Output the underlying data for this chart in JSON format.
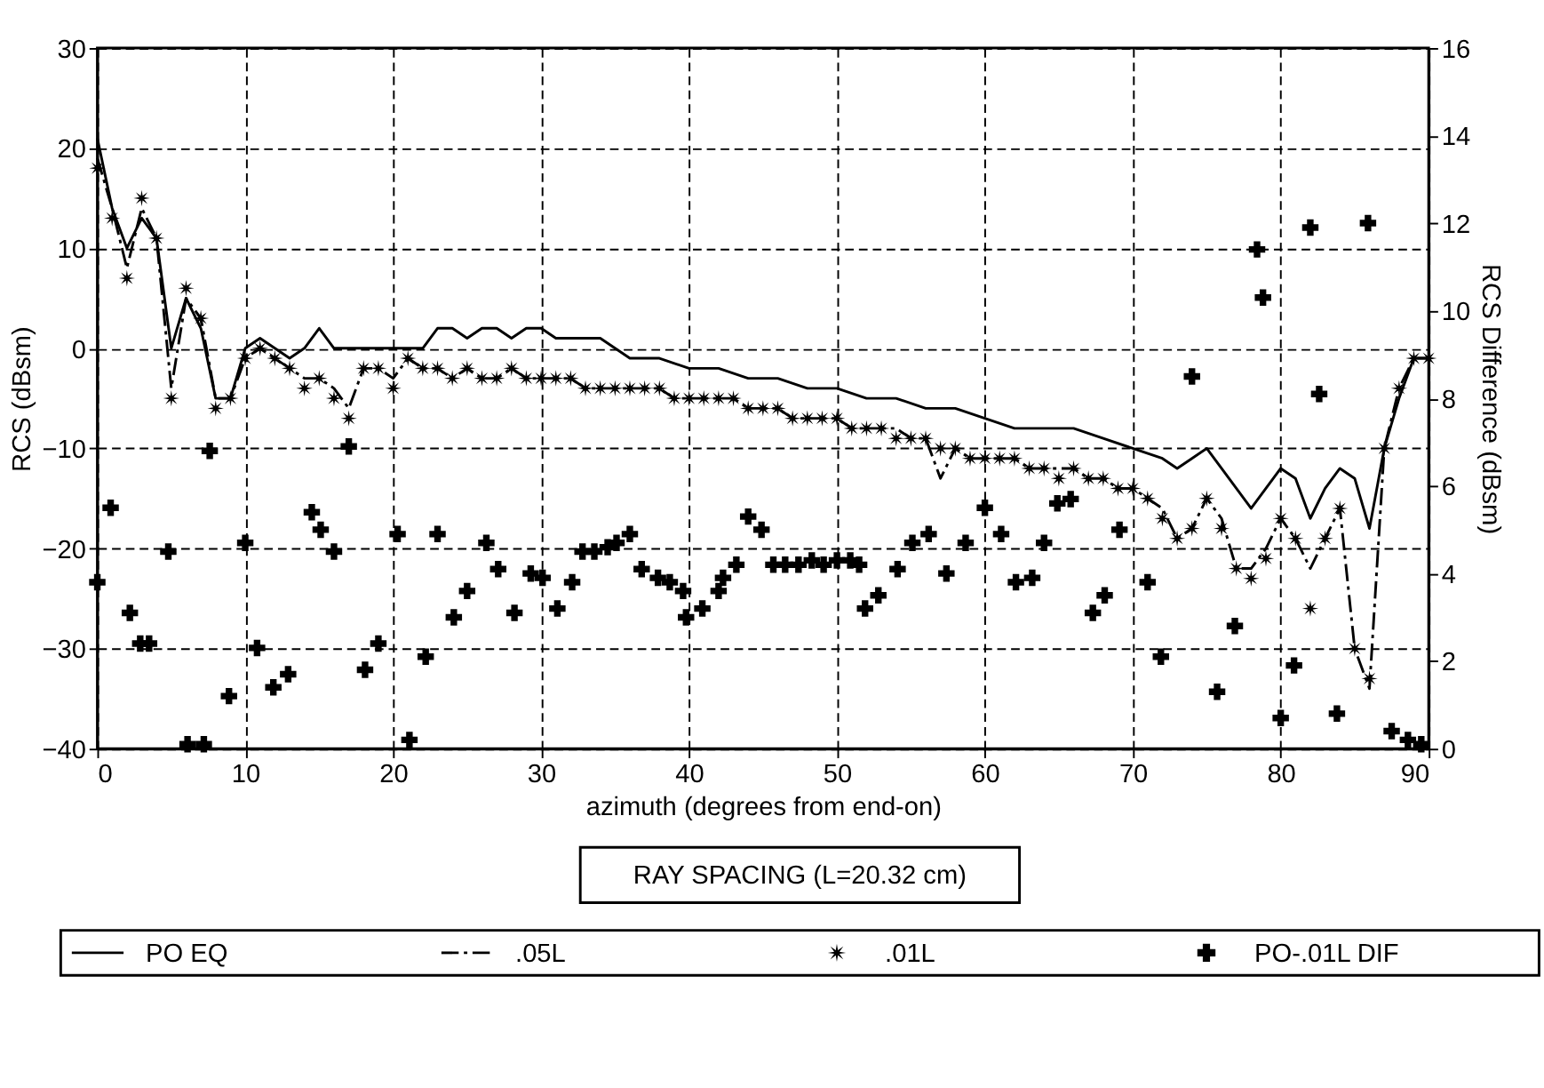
{
  "chart_data": {
    "type": "line",
    "xlabel": "azimuth (degrees from end-on)",
    "ylabel": "RCS (dBsm)",
    "y2label": "RCS Difference (dBsm)",
    "xlim": [
      0,
      90
    ],
    "xticks": [
      0,
      10,
      20,
      30,
      40,
      50,
      60,
      70,
      80,
      90
    ],
    "ylim": [
      -40,
      30
    ],
    "yticks": [
      -40,
      -30,
      -20,
      -10,
      0,
      10,
      20,
      30
    ],
    "y2lim": [
      0,
      16
    ],
    "y2ticks": [
      0,
      2,
      4,
      6,
      8,
      10,
      12,
      14,
      16
    ],
    "grid": true,
    "legend": "bottom",
    "annotations": [
      "RAY SPACING (L=20.32 cm)"
    ],
    "series": [
      {
        "name": "PO EQ",
        "line_style": "solid",
        "color": "#000000",
        "x": [
          0,
          1,
          2,
          3,
          4,
          5,
          6,
          7,
          8,
          9,
          10,
          11,
          12,
          13,
          14,
          15,
          16,
          17,
          18,
          19,
          20,
          21,
          22,
          23,
          24,
          25,
          26,
          27,
          28,
          29,
          30,
          31,
          32,
          33,
          34,
          35,
          36,
          38,
          40,
          42,
          44,
          46,
          48,
          50,
          52,
          54,
          56,
          58,
          60,
          62,
          64,
          66,
          68,
          70,
          72,
          73,
          74,
          75,
          76,
          77,
          78,
          79,
          80,
          81,
          82,
          83,
          84,
          85,
          86,
          87,
          88,
          89,
          90
        ],
        "values": [
          21,
          14,
          10,
          13,
          11,
          0,
          5,
          2,
          -5,
          -5,
          0,
          1,
          0,
          -1,
          0,
          2,
          0,
          0,
          0,
          0,
          0,
          0,
          0,
          2,
          2,
          1,
          2,
          2,
          1,
          2,
          2,
          1,
          1,
          1,
          1,
          0,
          -1,
          -1,
          -2,
          -2,
          -3,
          -3,
          -4,
          -4,
          -5,
          -5,
          -6,
          -6,
          -7,
          -8,
          -8,
          -8,
          -9,
          -10,
          -11,
          -12,
          -11,
          -10,
          -12,
          -14,
          -16,
          -14,
          -12,
          -13,
          -17,
          -14,
          -12,
          -13,
          -18,
          -10,
          -5,
          -1,
          -1
        ]
      },
      {
        "name": ".05L",
        "line_style": "dashed",
        "color": "#000000",
        "x": [
          0,
          1,
          2,
          3,
          4,
          5,
          6,
          7,
          8,
          9,
          10,
          11,
          12,
          13,
          14,
          15,
          16,
          17,
          18,
          19,
          20,
          21,
          22,
          23,
          24,
          25,
          26,
          27,
          28,
          29,
          30,
          31,
          32,
          33,
          34,
          35,
          36,
          37,
          38,
          39,
          40,
          41,
          42,
          43,
          44,
          45,
          46,
          47,
          48,
          49,
          50,
          51,
          52,
          53,
          54,
          55,
          56,
          57,
          58,
          59,
          60,
          61,
          62,
          63,
          64,
          65,
          66,
          67,
          68,
          69,
          70,
          71,
          72,
          73,
          74,
          75,
          76,
          77,
          78,
          79,
          80,
          81,
          82,
          83,
          84,
          85,
          86,
          87,
          88,
          89,
          90
        ],
        "values": [
          19,
          14,
          8,
          14,
          11,
          -4,
          5,
          3,
          -5,
          -5,
          -1,
          0,
          -1,
          -2,
          -3,
          -3,
          -4,
          -6,
          -2,
          -2,
          -3,
          -1,
          -2,
          -2,
          -3,
          -2,
          -3,
          -3,
          -2,
          -3,
          -3,
          -3,
          -3,
          -4,
          -4,
          -4,
          -4,
          -4,
          -4,
          -5,
          -5,
          -5,
          -5,
          -5,
          -6,
          -6,
          -6,
          -7,
          -7,
          -7,
          -7,
          -8,
          -8,
          -8,
          -8,
          -9,
          -9,
          -13,
          -10,
          -11,
          -11,
          -11,
          -11,
          -12,
          -12,
          -12,
          -12,
          -13,
          -13,
          -14,
          -14,
          -15,
          -16,
          -19,
          -18,
          -15,
          -17,
          -22,
          -22,
          -20,
          -17,
          -19,
          -22,
          -19,
          -16,
          -30,
          -34,
          -10,
          -4,
          -1,
          -1
        ]
      },
      {
        "name": ".01L",
        "type": "scatter",
        "marker": "star",
        "color": "#000000",
        "x": [
          0,
          1,
          2,
          3,
          4,
          5,
          6,
          7,
          8,
          9,
          10,
          11,
          12,
          13,
          14,
          15,
          16,
          17,
          18,
          19,
          20,
          21,
          22,
          23,
          24,
          25,
          26,
          27,
          28,
          29,
          30,
          31,
          32,
          33,
          34,
          35,
          36,
          37,
          38,
          39,
          40,
          41,
          42,
          43,
          44,
          45,
          46,
          47,
          48,
          49,
          50,
          51,
          52,
          53,
          54,
          55,
          56,
          57,
          58,
          59,
          60,
          61,
          62,
          63,
          64,
          65,
          66,
          67,
          68,
          69,
          70,
          71,
          72,
          73,
          74,
          75,
          76,
          77,
          78,
          79,
          80,
          81,
          82,
          83,
          84,
          85,
          86,
          87,
          88,
          89,
          90
        ],
        "values": [
          18,
          13,
          7,
          15,
          11,
          -5,
          6,
          3,
          -6,
          -5,
          -1,
          0,
          -1,
          -2,
          -4,
          -3,
          -5,
          -7,
          -2,
          -2,
          -4,
          -1,
          -2,
          -2,
          -3,
          -2,
          -3,
          -3,
          -2,
          -3,
          -3,
          -3,
          -3,
          -4,
          -4,
          -4,
          -4,
          -4,
          -4,
          -5,
          -5,
          -5,
          -5,
          -5,
          -6,
          -6,
          -6,
          -7,
          -7,
          -7,
          -7,
          -8,
          -8,
          -8,
          -9,
          -9,
          -9,
          -10,
          -10,
          -11,
          -11,
          -11,
          -11,
          -12,
          -12,
          -13,
          -12,
          -13,
          -13,
          -14,
          -14,
          -15,
          -17,
          -19,
          -18,
          -15,
          -18,
          -22,
          -23,
          -21,
          -17,
          -19,
          -26,
          -19,
          -16,
          -30,
          -33,
          -10,
          -4,
          -1,
          -1
        ]
      },
      {
        "name": "PO-.01L DIF",
        "type": "scatter",
        "marker": "cross",
        "axis": "y2",
        "color": "#000000",
        "x": [
          0,
          0.9,
          2.2,
          2.9,
          3.5,
          4.8,
          6.1,
          7.2,
          7.6,
          8.9,
          10,
          10.8,
          11.9,
          12.9,
          14.5,
          15.1,
          16,
          17,
          18.1,
          19,
          20.3,
          21.1,
          22.2,
          23,
          24.1,
          25,
          26.3,
          27.1,
          28.2,
          29.3,
          30.1,
          31.1,
          32.1,
          32.8,
          33.6,
          34.5,
          35.1,
          36,
          36.8,
          37.9,
          38.7,
          39.6,
          39.8,
          40.9,
          42,
          42.3,
          43.2,
          44,
          44.9,
          45.7,
          46.5,
          47.4,
          48.3,
          49.1,
          50,
          50.9,
          51.5,
          51.9,
          52.8,
          54.1,
          55.1,
          56.2,
          57.4,
          58.7,
          60,
          61.1,
          62.1,
          63.2,
          64,
          64.9,
          65.8,
          67.3,
          68.1,
          69.1,
          71,
          71.9,
          74,
          75.7,
          76.9,
          78.4,
          78.8,
          80,
          80.9,
          82,
          82.6,
          83.8,
          85.9,
          87.5,
          88.6,
          89.5
        ],
        "values": [
          3.8,
          5.5,
          3.1,
          2.4,
          2.4,
          4.5,
          0.1,
          0.1,
          6.8,
          1.2,
          4.7,
          2.3,
          1.4,
          1.7,
          5.4,
          5.0,
          4.5,
          6.9,
          1.8,
          2.4,
          4.9,
          0.2,
          2.1,
          4.9,
          3.0,
          3.6,
          4.7,
          4.1,
          3.1,
          4.0,
          3.9,
          3.2,
          3.8,
          4.5,
          4.5,
          4.6,
          4.7,
          4.9,
          4.1,
          3.9,
          3.8,
          3.6,
          3.0,
          3.2,
          3.6,
          3.9,
          4.2,
          5.3,
          5.0,
          4.2,
          4.2,
          4.2,
          4.3,
          4.2,
          4.3,
          4.3,
          4.2,
          3.2,
          3.5,
          4.1,
          4.7,
          4.9,
          4.0,
          4.7,
          5.5,
          4.9,
          3.8,
          3.9,
          4.7,
          5.6,
          5.7,
          3.1,
          3.5,
          5.0,
          3.8,
          2.1,
          8.5,
          1.3,
          2.8,
          11.4,
          10.3,
          0.7,
          1.9,
          11.9,
          8.1,
          0.8,
          12.0,
          0.4,
          0.2,
          0.1
        ]
      }
    ]
  }
}
